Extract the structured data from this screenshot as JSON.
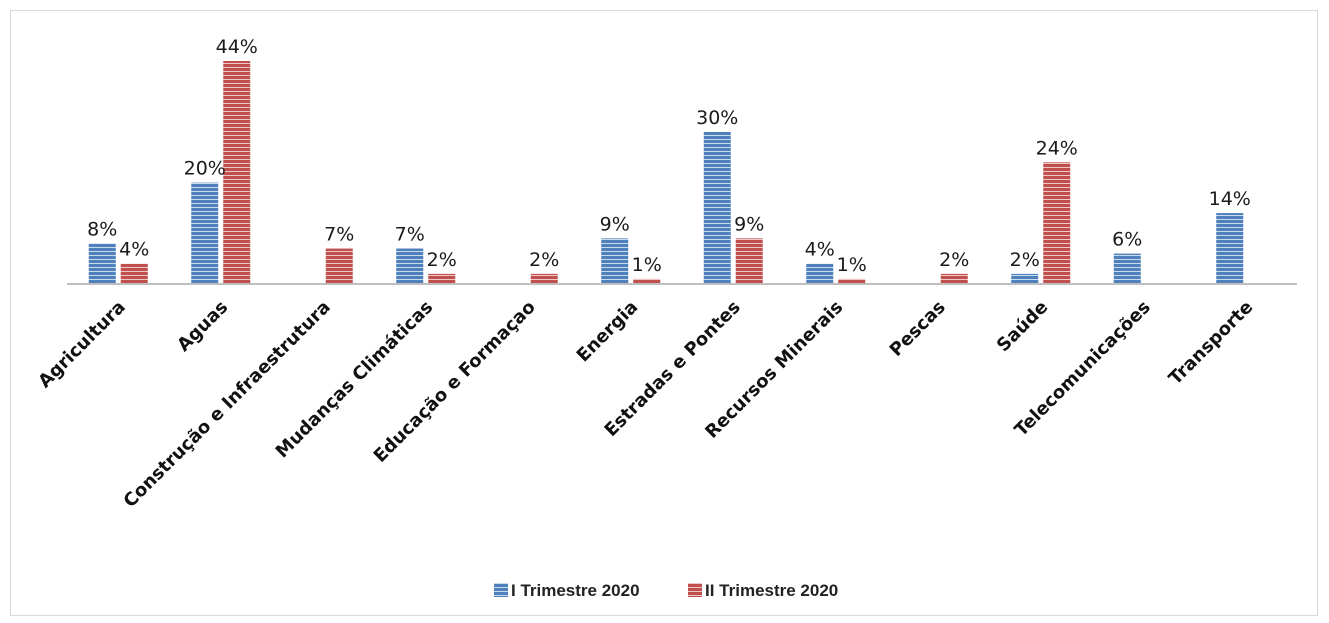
{
  "chart_data": {
    "type": "bar",
    "categories": [
      "Agricultura",
      "Aguas",
      "Construção e Infraestrutura",
      "Mudanças Climáticas",
      "Educação e Formaçao",
      "Energia",
      "Estradas e Pontes",
      "Recursos Minerais",
      "Pescas",
      "Saúde",
      "Telecomunicações",
      "Transporte"
    ],
    "series": [
      {
        "name": "I Trimestre 2020",
        "color": "#4f81bd",
        "values": [
          8,
          20,
          null,
          7,
          null,
          9,
          30,
          4,
          null,
          2,
          6,
          14
        ],
        "labels": [
          "8%",
          "20%",
          "",
          "7%",
          "",
          "9%",
          "30%",
          "4%",
          "",
          "2%",
          "6%",
          "14%"
        ]
      },
      {
        "name": "II Trimestre 2020",
        "color": "#c0504d",
        "values": [
          4,
          44,
          7,
          2,
          2,
          1,
          9,
          1,
          2,
          24,
          null,
          null
        ],
        "labels": [
          "4%",
          "44%",
          "7%",
          "2%",
          "2%",
          "1%",
          "9%",
          "1%",
          "2%",
          "24%",
          "",
          ""
        ]
      }
    ],
    "unit": "%",
    "legend_position": "bottom",
    "grid": false,
    "ylim": [
      0,
      44
    ]
  }
}
